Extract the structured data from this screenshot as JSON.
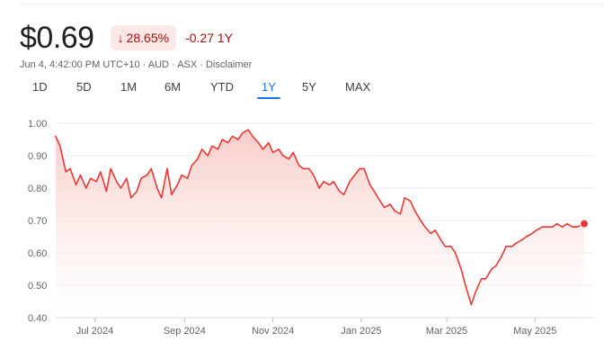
{
  "quote": {
    "price": "$0.69",
    "change_percent": "28.65%",
    "change_arrow": "↓",
    "change_abs": "-0.27 1Y",
    "meta_timestamp": "Jun 4, 4:42:00 PM UTC+10",
    "meta_currency": "AUD",
    "meta_exchange": "ASX",
    "meta_disclaimer": "Disclaimer",
    "meta_sep": " · "
  },
  "ranges": [
    {
      "label": "1D",
      "active": false
    },
    {
      "label": "5D",
      "active": false
    },
    {
      "label": "1M",
      "active": false
    },
    {
      "label": "6M",
      "active": false
    },
    {
      "label": "YTD",
      "active": false
    },
    {
      "label": "1Y",
      "active": true
    },
    {
      "label": "5Y",
      "active": false
    },
    {
      "label": "MAX",
      "active": false
    }
  ],
  "colors": {
    "line": "#e53935",
    "fill_top": "#f8c9c4",
    "grid": "#ebebeb",
    "accent_blue": "#1a73e8",
    "negative": "#a50e0e"
  },
  "chart_data": {
    "type": "line",
    "title": "",
    "xlabel": "",
    "ylabel": "",
    "ylim": [
      0.4,
      1.0
    ],
    "y_ticks": [
      "1.00",
      "0.90",
      "0.80",
      "0.70",
      "0.60",
      "0.50",
      "0.40"
    ],
    "x_ticks": [
      {
        "label": "Jul 2024",
        "date": "2024-07-01"
      },
      {
        "label": "Sep 2024",
        "date": "2024-09-01"
      },
      {
        "label": "Nov 2024",
        "date": "2024-11-01"
      },
      {
        "label": "Jan 2025",
        "date": "2025-01-01"
      },
      {
        "label": "Mar 2025",
        "date": "2025-03-01"
      },
      {
        "label": "May 2025",
        "date": "2025-05-01"
      }
    ],
    "grid": true,
    "series": [
      {
        "name": "",
        "x": [
          "2024-06-04",
          "2024-06-07",
          "2024-06-11",
          "2024-06-14",
          "2024-06-18",
          "2024-06-21",
          "2024-06-25",
          "2024-06-28",
          "2024-07-02",
          "2024-07-05",
          "2024-07-09",
          "2024-07-12",
          "2024-07-16",
          "2024-07-19",
          "2024-07-23",
          "2024-07-26",
          "2024-07-30",
          "2024-08-02",
          "2024-08-06",
          "2024-08-09",
          "2024-08-13",
          "2024-08-16",
          "2024-08-20",
          "2024-08-23",
          "2024-08-27",
          "2024-08-30",
          "2024-09-03",
          "2024-09-06",
          "2024-09-10",
          "2024-09-13",
          "2024-09-17",
          "2024-09-20",
          "2024-09-24",
          "2024-09-27",
          "2024-10-01",
          "2024-10-04",
          "2024-10-08",
          "2024-10-11",
          "2024-10-15",
          "2024-10-18",
          "2024-10-22",
          "2024-10-25",
          "2024-10-29",
          "2024-11-01",
          "2024-11-05",
          "2024-11-08",
          "2024-11-12",
          "2024-11-15",
          "2024-11-19",
          "2024-11-22",
          "2024-11-26",
          "2024-11-29",
          "2024-12-03",
          "2024-12-06",
          "2024-12-10",
          "2024-12-13",
          "2024-12-17",
          "2024-12-20",
          "2024-12-24",
          "2024-12-31",
          "2025-01-03",
          "2025-01-07",
          "2025-01-10",
          "2025-01-14",
          "2025-01-17",
          "2025-01-21",
          "2025-01-24",
          "2025-01-28",
          "2025-01-31",
          "2025-02-04",
          "2025-02-07",
          "2025-02-11",
          "2025-02-14",
          "2025-02-18",
          "2025-02-21",
          "2025-02-25",
          "2025-02-28",
          "2025-03-04",
          "2025-03-07",
          "2025-03-11",
          "2025-03-14",
          "2025-03-18",
          "2025-03-21",
          "2025-03-25",
          "2025-03-28",
          "2025-04-01",
          "2025-04-04",
          "2025-04-08",
          "2025-04-11",
          "2025-04-15",
          "2025-04-18",
          "2025-04-22",
          "2025-04-25",
          "2025-04-29",
          "2025-05-02",
          "2025-05-06",
          "2025-05-09",
          "2025-05-13",
          "2025-05-16",
          "2025-05-20",
          "2025-05-23",
          "2025-05-27",
          "2025-05-30",
          "2025-06-04"
        ],
        "y": [
          0.96,
          0.93,
          0.85,
          0.86,
          0.81,
          0.84,
          0.8,
          0.83,
          0.82,
          0.85,
          0.79,
          0.86,
          0.82,
          0.8,
          0.83,
          0.77,
          0.79,
          0.83,
          0.84,
          0.86,
          0.8,
          0.77,
          0.86,
          0.78,
          0.81,
          0.84,
          0.83,
          0.87,
          0.89,
          0.92,
          0.9,
          0.93,
          0.92,
          0.95,
          0.94,
          0.96,
          0.95,
          0.97,
          0.98,
          0.96,
          0.94,
          0.92,
          0.94,
          0.91,
          0.92,
          0.9,
          0.89,
          0.91,
          0.87,
          0.86,
          0.86,
          0.84,
          0.8,
          0.82,
          0.81,
          0.82,
          0.79,
          0.78,
          0.82,
          0.86,
          0.86,
          0.81,
          0.79,
          0.76,
          0.74,
          0.75,
          0.73,
          0.72,
          0.77,
          0.76,
          0.73,
          0.7,
          0.68,
          0.66,
          0.67,
          0.64,
          0.62,
          0.62,
          0.6,
          0.55,
          0.5,
          0.44,
          0.48,
          0.52,
          0.52,
          0.55,
          0.56,
          0.59,
          0.62,
          0.62,
          0.63,
          0.64,
          0.65,
          0.66,
          0.67,
          0.68,
          0.68,
          0.68,
          0.69,
          0.68,
          0.69,
          0.68,
          0.68,
          0.69
        ]
      }
    ],
    "last_value": 0.69
  }
}
